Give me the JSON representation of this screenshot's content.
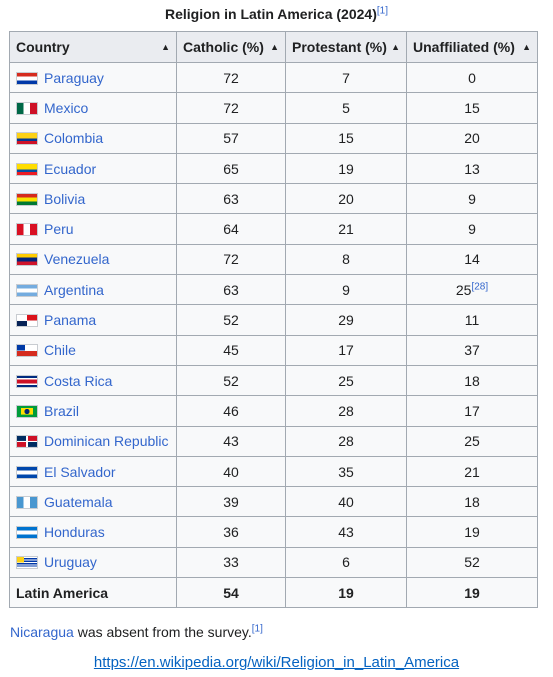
{
  "caption": {
    "title": "Religion in Latin America (2024)",
    "ref": "[1]"
  },
  "columns": [
    "Country",
    "Catholic (%)",
    "Protestant (%)",
    "Unaffiliated (%)"
  ],
  "rows": [
    {
      "country": "Paraguay",
      "flag": "paraguay",
      "catholic": "72",
      "protestant": "7",
      "unaffiliated": "0"
    },
    {
      "country": "Mexico",
      "flag": "mexico",
      "catholic": "72",
      "protestant": "5",
      "unaffiliated": "15"
    },
    {
      "country": "Colombia",
      "flag": "colombia",
      "catholic": "57",
      "protestant": "15",
      "unaffiliated": "20"
    },
    {
      "country": "Ecuador",
      "flag": "ecuador",
      "catholic": "65",
      "protestant": "19",
      "unaffiliated": "13"
    },
    {
      "country": "Bolivia",
      "flag": "bolivia",
      "catholic": "63",
      "protestant": "20",
      "unaffiliated": "9"
    },
    {
      "country": "Peru",
      "flag": "peru",
      "catholic": "64",
      "protestant": "21",
      "unaffiliated": "9"
    },
    {
      "country": "Venezuela",
      "flag": "venezuela",
      "catholic": "72",
      "protestant": "8",
      "unaffiliated": "14"
    },
    {
      "country": "Argentina",
      "flag": "argentina",
      "catholic": "63",
      "protestant": "9",
      "unaffiliated": "25",
      "unaffiliated_ref": "[28]"
    },
    {
      "country": "Panama",
      "flag": "panama",
      "catholic": "52",
      "protestant": "29",
      "unaffiliated": "11"
    },
    {
      "country": "Chile",
      "flag": "chile",
      "catholic": "45",
      "protestant": "17",
      "unaffiliated": "37"
    },
    {
      "country": "Costa Rica",
      "flag": "costa-rica",
      "catholic": "52",
      "protestant": "25",
      "unaffiliated": "18"
    },
    {
      "country": "Brazil",
      "flag": "brazil",
      "catholic": "46",
      "protestant": "28",
      "unaffiliated": "17"
    },
    {
      "country": "Dominican Republic",
      "flag": "dominican-republic",
      "catholic": "43",
      "protestant": "28",
      "unaffiliated": "25"
    },
    {
      "country": "El Salvador",
      "flag": "el-salvador",
      "catholic": "40",
      "protestant": "35",
      "unaffiliated": "21"
    },
    {
      "country": "Guatemala",
      "flag": "guatemala",
      "catholic": "39",
      "protestant": "40",
      "unaffiliated": "18"
    },
    {
      "country": "Honduras",
      "flag": "honduras",
      "catholic": "36",
      "protestant": "43",
      "unaffiliated": "19"
    },
    {
      "country": "Uruguay",
      "flag": "uruguay",
      "catholic": "33",
      "protestant": "6",
      "unaffiliated": "52"
    }
  ],
  "total": {
    "label": "Latin America",
    "catholic": "54",
    "protestant": "19",
    "unaffiliated": "19"
  },
  "note": {
    "link": "Nicaragua",
    "text": " was absent from the survey.",
    "ref": "[1]"
  },
  "source_url": "https://en.wikipedia.org/wiki/Religion_in_Latin_America",
  "colors": {
    "link": "#3366cc",
    "header_bg": "#eaecf0",
    "cell_bg": "#f8f9fa",
    "border": "#a2a9b1"
  }
}
